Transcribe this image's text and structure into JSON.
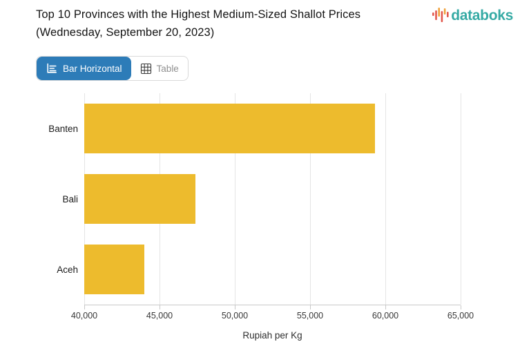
{
  "header": {
    "title": "Top 10 Provinces with the Highest Medium-Sized Shallot Prices (Wednesday, September 20, 2023)",
    "logo": {
      "text": "databoks",
      "text_color": "#35aaa4",
      "icon": "databoks-bars-icon",
      "icon_colors": {
        "red": "#e2574c",
        "orange": "#f0a23c"
      }
    }
  },
  "toolbar": {
    "bar_horizontal_label": "Bar Horizontal",
    "table_label": "Table",
    "active_bg_color": "#2d7cb8"
  },
  "chart_data": {
    "type": "bar",
    "orientation": "horizontal",
    "title": "Top 10 Provinces with the Highest Medium-Sized Shallot Prices (Wednesday, September 20, 2023)",
    "categories": [
      "Banten",
      "Bali",
      "Aceh"
    ],
    "values": [
      59300,
      47400,
      44000
    ],
    "xlabel": "Rupiah per Kg",
    "ylabel": "",
    "xlim": [
      40000,
      65000
    ],
    "xticks": [
      40000,
      45000,
      50000,
      55000,
      60000,
      65000
    ],
    "xtick_labels": [
      "40,000",
      "45,000",
      "50,000",
      "55,000",
      "60,000",
      "65,000"
    ],
    "grid": true,
    "legend": false,
    "bar_color": "#edbb2d"
  }
}
